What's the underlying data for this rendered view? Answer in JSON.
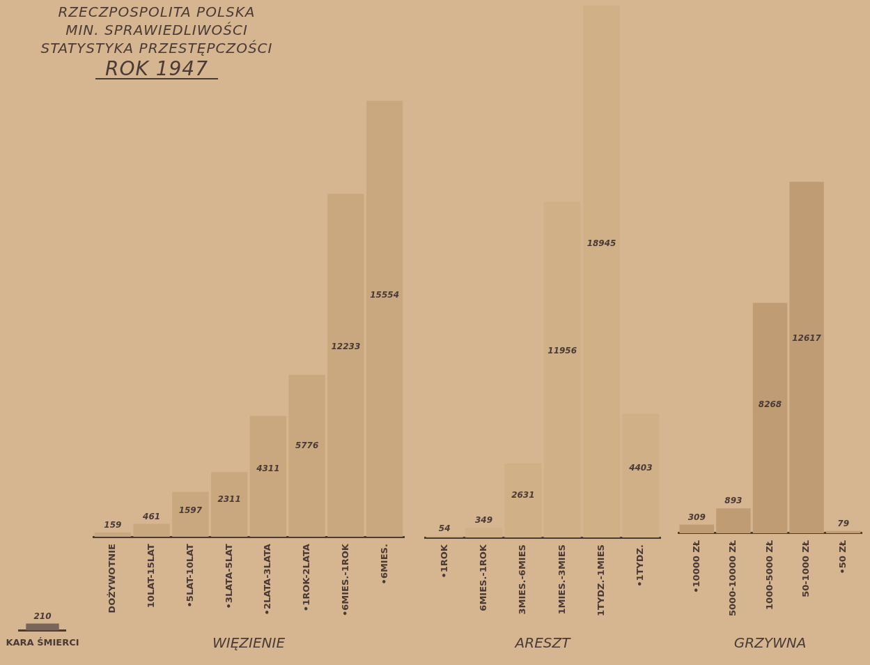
{
  "chart_data": [
    {
      "type": "bar",
      "categories": [
        "KARA ŚMIERCI"
      ],
      "values": [
        210
      ],
      "color": "#7a655a",
      "data_labels": true,
      "tick_labels": "x"
    },
    {
      "type": "bar",
      "title": "RZECZPOSPOLITA POLSKA\nMIN. SPRAWIEDLIWOŚCI\nSTATYSTYKA PRZESTĘPCZOŚCI",
      "subtitle": "ROK 1947",
      "categories": [
        "DOŻYWOTNIE",
        "10LAT-15LAT",
        "•5LAT-10LAT",
        "•3LATA-5LAT",
        "•2LATA-3LATA",
        "•1ROK-2LATA",
        "•6MIES.-1ROK",
        "•6MIES."
      ],
      "values": [
        159,
        461,
        1597,
        2311,
        4311,
        5776,
        12233,
        15554
      ],
      "color": "#c9a87f",
      "xlabel": "WIĘZIENIE",
      "data_labels": true,
      "tick_labels": "x"
    },
    {
      "type": "bar",
      "categories": [
        "•1ROK",
        "6MIES.-1ROK",
        "3MIES.-6MIES",
        "1MIES.-3MIES",
        "1TYDZ.-1MIES",
        "•1TYDZ."
      ],
      "values": [
        54,
        349,
        2631,
        11956,
        18945,
        4403
      ],
      "color": "#d0b087",
      "xlabel": "ARESZT",
      "data_labels": true,
      "tick_labels": "x"
    },
    {
      "type": "bar",
      "categories": [
        "•10000 ZŁ",
        "5000-10000 ZŁ",
        "1000-5000 ZŁ",
        "50-1000 ZŁ",
        "•50 ZŁ"
      ],
      "values": [
        309,
        893,
        8268,
        12617,
        79
      ],
      "color": "#bf9c74",
      "xlabel": "GRZYWNA",
      "data_labels": true,
      "tick_labels": "x"
    }
  ]
}
